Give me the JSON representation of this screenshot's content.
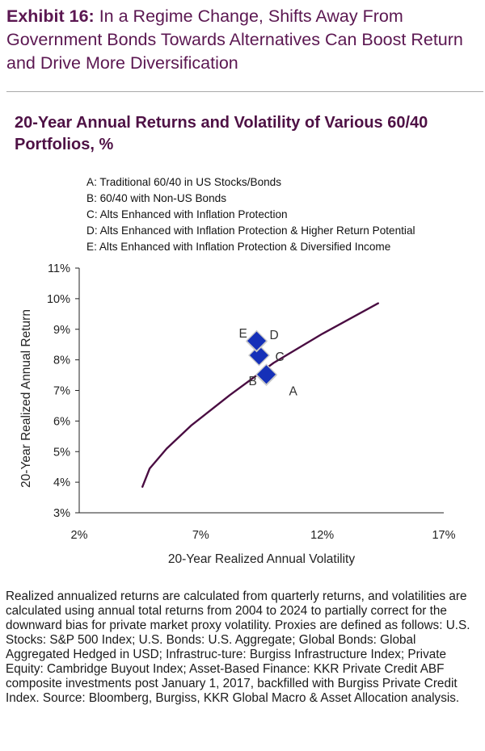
{
  "header": {
    "exhibit_label": "Exhibit 16:",
    "exhibit_title": "In a Regime Change, Shifts Away From Government Bonds Towards Alternatives Can Boost Return and Drive More Diversification"
  },
  "colors": {
    "title": "#5b1751",
    "curve": "#4a0d42",
    "marker": "#1530b8",
    "marker_edge": "#c9c9c9",
    "rule": "#a9a9a9"
  },
  "chart_data": {
    "type": "scatter",
    "title": "20-Year Annual Returns and Volatility of Various 60/40 Portfolios, %",
    "xlabel": "20-Year Realized Annual Volatility",
    "ylabel": "20-Year Realized Annual Return",
    "xlim": [
      2,
      17
    ],
    "ylim": [
      3,
      11
    ],
    "x_ticks": [
      2,
      7,
      12,
      17
    ],
    "x_tick_labels": [
      "2%",
      "7%",
      "12%",
      "17%"
    ],
    "y_ticks": [
      3,
      4,
      5,
      6,
      7,
      8,
      9,
      10,
      11
    ],
    "y_tick_labels": [
      "3%",
      "4%",
      "5%",
      "6%",
      "7%",
      "8%",
      "9%",
      "10%",
      "11%"
    ],
    "grid": false,
    "legend": [
      {
        "key": "A",
        "text": "A: Traditional 60/40 in US Stocks/Bonds"
      },
      {
        "key": "B",
        "text": "B: 60/40 with Non-US Bonds"
      },
      {
        "key": "C",
        "text": "C: Alts Enhanced with Inflation Protection"
      },
      {
        "key": "D",
        "text": "D: Alts Enhanced with Inflation Protection & Higher Return Potential"
      },
      {
        "key": "E",
        "text": "E: Alts Enhanced with Inflation Protection & Diversified Income"
      }
    ],
    "frontier": {
      "name": "Efficient frontier",
      "x": [
        4.6,
        4.9,
        5.6,
        6.6,
        8.2,
        10.0,
        12.0,
        14.3
      ],
      "y": [
        3.85,
        4.45,
        5.1,
        5.85,
        6.85,
        7.9,
        8.85,
        9.85
      ]
    },
    "points": [
      {
        "label": "A",
        "x": 9.7,
        "y": 7.5
      },
      {
        "label": "B",
        "x": 9.7,
        "y": 7.52
      },
      {
        "label": "C",
        "x": 9.4,
        "y": 8.15
      },
      {
        "label": "D",
        "x": 9.3,
        "y": 8.6
      },
      {
        "label": "E",
        "x": 9.3,
        "y": 8.62
      }
    ]
  },
  "footnote": "Realized annualized returns are calculated from quarterly returns, and volatilities are calculated using annual total returns from 2004 to 2024 to partially correct for the downward bias for private market proxy volatility. Proxies are defined as follows: U.S. Stocks: S&P 500 Index; U.S. Bonds: U.S. Aggregate; Global Bonds: Global Aggregated Hedged in USD; Infrastruc-ture: Burgiss Infrastructure Index; Private Equity: Cambridge Buyout Index; Asset-Based Finance: KKR Private Credit ABF composite investments post January 1, 2017, backfilled with Burgiss Private Credit Index. Source: Bloomberg, Burgiss, KKR Global Macro & Asset Allocation analysis."
}
